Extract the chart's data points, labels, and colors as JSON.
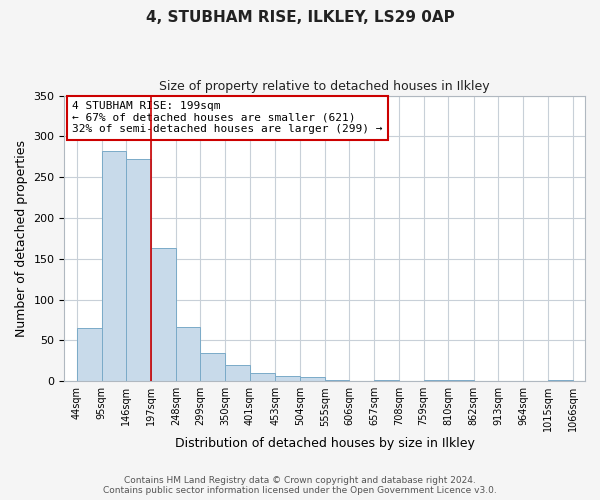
{
  "title": "4, STUBHAM RISE, ILKLEY, LS29 0AP",
  "subtitle": "Size of property relative to detached houses in Ilkley",
  "xlabel": "Distribution of detached houses by size in Ilkley",
  "ylabel": "Number of detached properties",
  "all_bar_vals": [
    65,
    282,
    272,
    163,
    67,
    34,
    20,
    10,
    6,
    5,
    1,
    0,
    1,
    0,
    1,
    2,
    0,
    0,
    0,
    2
  ],
  "bar_labels": [
    "44sqm",
    "95sqm",
    "146sqm",
    "197sqm",
    "248sqm",
    "299sqm",
    "350sqm",
    "401sqm",
    "453sqm",
    "504sqm",
    "555sqm",
    "606sqm",
    "657sqm",
    "708sqm",
    "759sqm",
    "810sqm",
    "862sqm",
    "913sqm",
    "964sqm",
    "1015sqm",
    "1066sqm"
  ],
  "bin_edges": [
    44,
    95,
    146,
    197,
    248,
    299,
    350,
    401,
    453,
    504,
    555,
    606,
    657,
    708,
    759,
    810,
    862,
    913,
    964,
    1015,
    1066
  ],
  "bar_color": "#c8daea",
  "bar_edge_color": "#7aaac8",
  "vline_x": 197,
  "vline_color": "#cc0000",
  "ylim": [
    0,
    350
  ],
  "yticks": [
    0,
    50,
    100,
    150,
    200,
    250,
    300,
    350
  ],
  "annotation_title": "4 STUBHAM RISE: 199sqm",
  "annotation_line1": "← 67% of detached houses are smaller (621)",
  "annotation_line2": "32% of semi-detached houses are larger (299) →",
  "annotation_box_edgecolor": "#cc0000",
  "footer_line1": "Contains HM Land Registry data © Crown copyright and database right 2024.",
  "footer_line2": "Contains public sector information licensed under the Open Government Licence v3.0.",
  "fig_facecolor": "#f5f5f5",
  "plot_facecolor": "#ffffff",
  "grid_color": "#c8d0d8",
  "spine_color": "#b0b8c0"
}
